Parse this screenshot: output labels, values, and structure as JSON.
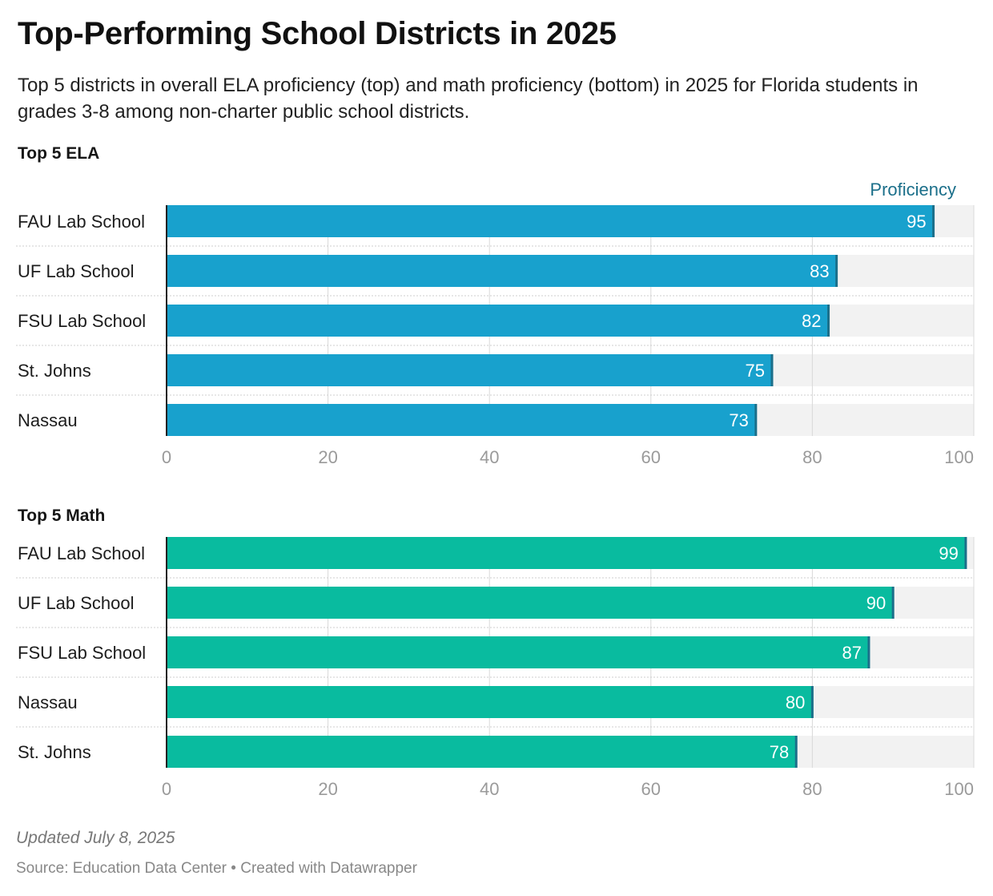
{
  "title": "Top-Performing School Districts in 2025",
  "subtitle": "Top 5 districts in overall ELA proficiency (top) and math proficiency (bottom) in 2025 for Florida students in grades 3-8 among non-charter public school districts.",
  "chart_data": [
    {
      "type": "bar",
      "orientation": "horizontal",
      "title": "Top 5 ELA",
      "column_label": "Proficiency",
      "categories": [
        "FAU Lab School",
        "UF Lab School",
        "FSU Lab School",
        "St. Johns",
        "Nassau"
      ],
      "values": [
        95,
        83,
        82,
        75,
        73
      ],
      "xlim": [
        0,
        100
      ],
      "x_ticks": [
        "0",
        "20",
        "40",
        "60",
        "80",
        "100"
      ],
      "grid": true,
      "bar_color": "#18a1cd",
      "track_color": "#f2f2f2",
      "marker_color": "#1b6f8a"
    },
    {
      "type": "bar",
      "orientation": "horizontal",
      "title": "Top 5 Math",
      "categories": [
        "FAU Lab School",
        "UF Lab School",
        "FSU Lab School",
        "Nassau",
        "St. Johns"
      ],
      "values": [
        99,
        90,
        87,
        80,
        78
      ],
      "xlim": [
        0,
        100
      ],
      "x_ticks": [
        "0",
        "20",
        "40",
        "60",
        "80",
        "100"
      ],
      "grid": true,
      "bar_color": "#09bb9f",
      "track_color": "#f2f2f2",
      "marker_color": "#1b6f8a"
    }
  ],
  "footer": {
    "updated": "Updated July 8, 2025",
    "source_label": "Source: Education Data Center",
    "separator": "•",
    "credit": "Created with Datawrapper"
  }
}
